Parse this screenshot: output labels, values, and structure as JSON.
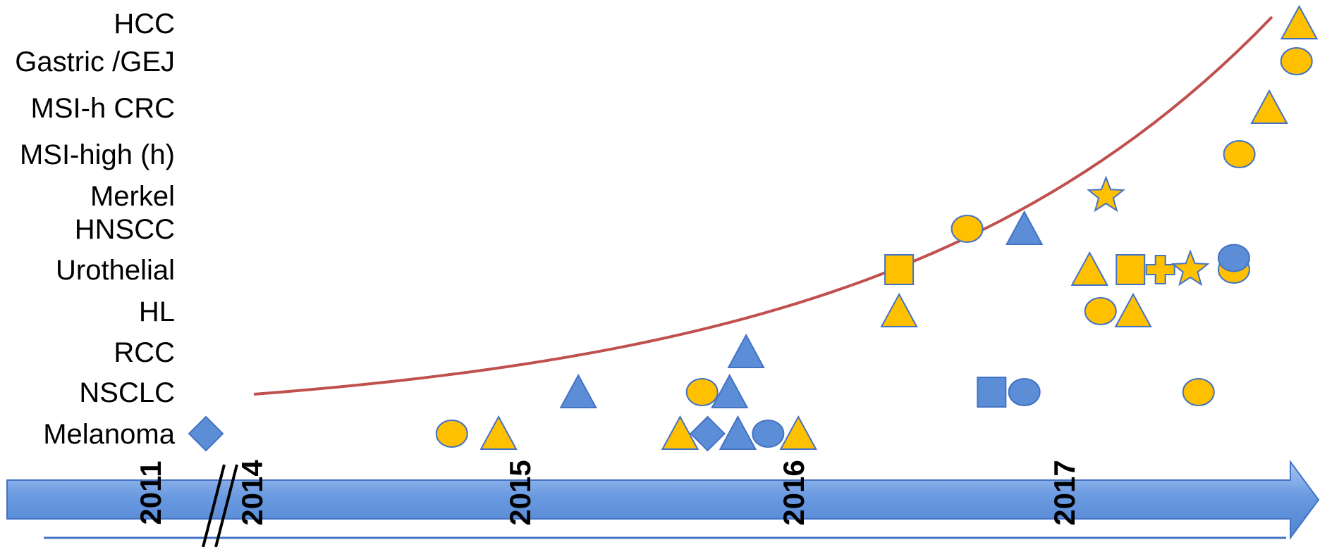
{
  "chart_data": {
    "type": "scatter",
    "title": "",
    "xlabel": "",
    "ylabel": "",
    "categories": [
      "Melanoma",
      "NSCLC",
      "RCC",
      "HL",
      "Urothelial",
      "HNSCC",
      "Merkel",
      "MSI-high (h)",
      "MSI-h CRC",
      "Gastric /GEJ",
      "HCC"
    ],
    "x_ticks": [
      {
        "label": "2011",
        "x": 2011.0
      },
      {
        "label": "2014",
        "x": 2014.0
      },
      {
        "label": "2015",
        "x": 2015.0
      },
      {
        "label": "2016",
        "x": 2016.0
      },
      {
        "label": "2017",
        "x": 2017.0
      }
    ],
    "axis_break": "between 2011 and 2014",
    "xlim": [
      2011.0,
      2017.88
    ],
    "trend_curve": {
      "color": "#C0504D",
      "x_start": 2014.0,
      "x_end": 2017.72,
      "shape": "exponential"
    },
    "colors": {
      "fda_orange": "#FFC000",
      "fda_blue": "#5B8ED6",
      "outline": "#4472C4",
      "arrow": "#6A9AE0"
    },
    "points": [
      {
        "category": "Melanoma",
        "x": 2011.02,
        "shape": "diamond",
        "color": "blue"
      },
      {
        "category": "Melanoma",
        "x": 2014.72,
        "shape": "circle",
        "color": "orange"
      },
      {
        "category": "Melanoma",
        "x": 2014.89,
        "shape": "triangle",
        "color": "orange"
      },
      {
        "category": "Melanoma",
        "x": 2015.55,
        "shape": "triangle",
        "color": "orange"
      },
      {
        "category": "Melanoma",
        "x": 2015.65,
        "shape": "diamond",
        "color": "blue"
      },
      {
        "category": "Melanoma",
        "x": 2015.76,
        "shape": "triangle",
        "color": "blue"
      },
      {
        "category": "Melanoma",
        "x": 2015.87,
        "shape": "circle",
        "color": "blue"
      },
      {
        "category": "Melanoma",
        "x": 2015.98,
        "shape": "triangle",
        "color": "orange"
      },
      {
        "category": "NSCLC",
        "x": 2015.18,
        "shape": "triangle",
        "color": "blue"
      },
      {
        "category": "NSCLC",
        "x": 2015.63,
        "shape": "circle",
        "color": "orange"
      },
      {
        "category": "NSCLC",
        "x": 2015.73,
        "shape": "triangle",
        "color": "blue"
      },
      {
        "category": "NSCLC",
        "x": 2016.69,
        "shape": "square",
        "color": "blue"
      },
      {
        "category": "NSCLC",
        "x": 2016.81,
        "shape": "circle",
        "color": "blue"
      },
      {
        "category": "NSCLC",
        "x": 2017.45,
        "shape": "circle",
        "color": "orange"
      },
      {
        "category": "RCC",
        "x": 2015.79,
        "shape": "triangle",
        "color": "blue"
      },
      {
        "category": "HL",
        "x": 2016.35,
        "shape": "triangle",
        "color": "orange"
      },
      {
        "category": "HL",
        "x": 2017.09,
        "shape": "circle",
        "color": "orange"
      },
      {
        "category": "HL",
        "x": 2017.21,
        "shape": "triangle",
        "color": "orange"
      },
      {
        "category": "Urothelial",
        "x": 2016.35,
        "shape": "square",
        "color": "orange"
      },
      {
        "category": "Urothelial",
        "x": 2017.05,
        "shape": "triangle",
        "color": "orange"
      },
      {
        "category": "Urothelial",
        "x": 2017.2,
        "shape": "square",
        "color": "orange"
      },
      {
        "category": "Urothelial",
        "x": 2017.31,
        "shape": "cross",
        "color": "orange"
      },
      {
        "category": "Urothelial",
        "x": 2017.42,
        "shape": "star",
        "color": "orange"
      },
      {
        "category": "Urothelial",
        "x": 2017.58,
        "shape": "circle",
        "color": "orange"
      },
      {
        "category": "Urothelial",
        "x": 2017.58,
        "shape": "circle",
        "color": "blue",
        "offset": 0.55
      },
      {
        "category": "HNSCC",
        "x": 2016.6,
        "shape": "circle",
        "color": "orange"
      },
      {
        "category": "HNSCC",
        "x": 2016.81,
        "shape": "triangle",
        "color": "blue"
      },
      {
        "category": "Merkel",
        "x": 2017.11,
        "shape": "star",
        "color": "orange"
      },
      {
        "category": "MSI-high (h)",
        "x": 2017.6,
        "shape": "circle",
        "color": "orange"
      },
      {
        "category": "MSI-h CRC",
        "x": 2017.71,
        "shape": "triangle",
        "color": "orange"
      },
      {
        "category": "Gastric /GEJ",
        "x": 2017.81,
        "shape": "circle",
        "color": "orange"
      },
      {
        "category": "HCC",
        "x": 2017.82,
        "shape": "triangle",
        "color": "orange"
      }
    ]
  }
}
